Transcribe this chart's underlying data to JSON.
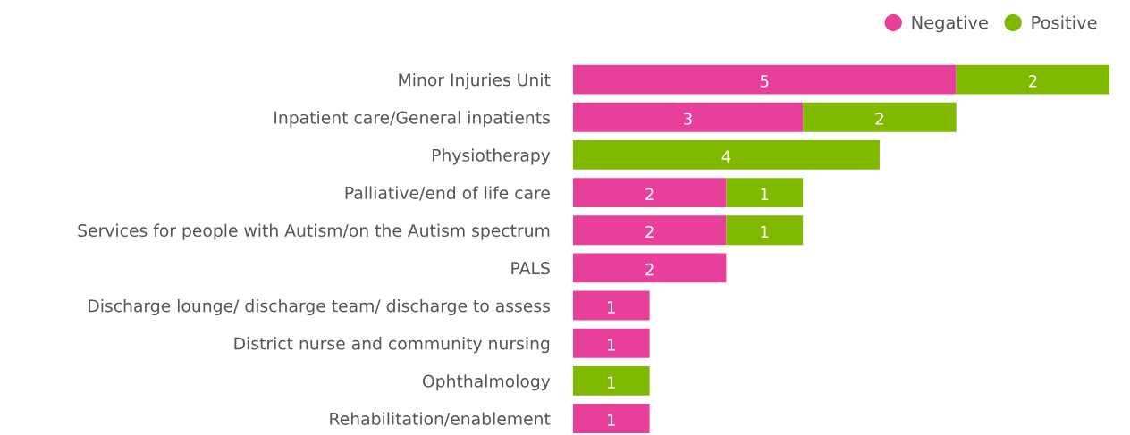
{
  "chart_data": {
    "type": "bar",
    "orientation": "horizontal",
    "stacked": true,
    "data_labels": true,
    "tick_labels": "y",
    "legend": "top right",
    "grid": false,
    "marker": "circle",
    "categories": [
      "Minor Injuries Unit",
      "Inpatient care/General inpatients",
      "Physiotherapy",
      "Palliative/end of life care",
      "Services for people with Autism/on the Autism spectrum",
      "PALS",
      "Discharge lounge/ discharge team/ discharge to assess",
      "District nurse and community nursing",
      "Ophthalmology",
      "Rehabilitation/enablement"
    ],
    "series": [
      {
        "name": "Negative",
        "color": "#e8409a",
        "values": [
          5,
          3,
          null,
          2,
          2,
          2,
          1,
          1,
          null,
          1
        ]
      },
      {
        "name": "Positive",
        "color": "#7fba00",
        "values": [
          2,
          2,
          4,
          1,
          1,
          null,
          null,
          null,
          1,
          null
        ]
      }
    ]
  }
}
